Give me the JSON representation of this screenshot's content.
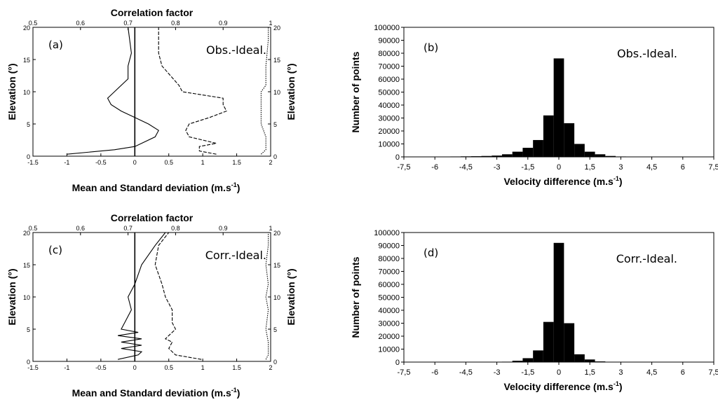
{
  "chart_data": [
    {
      "id": "a",
      "type": "line",
      "panel_label": "(a)",
      "annotation": "Obs.-Ideal.",
      "title": "Correlation factor",
      "xlabel": "Mean and Standard deviation (m.s",
      "xlabel_sup": "-1",
      "xlabel_end": ")",
      "ylabel_left": "Elevation (°)",
      "ylabel_right": "Elevation (°)",
      "xlim": [
        -1.5,
        2
      ],
      "xticks": [
        "-1.5",
        "-1",
        "-0.5",
        "0",
        "0.5",
        "1",
        "1.5",
        "2"
      ],
      "top_xlim": [
        0.5,
        1
      ],
      "top_xticks": [
        "0.5",
        "0.6",
        "0.7",
        "0.8",
        "0.9",
        "1"
      ],
      "ylim": [
        0,
        20
      ],
      "yticks": [
        "0",
        "5",
        "10",
        "15",
        "20"
      ],
      "series": [
        {
          "y": [
            0.3,
            1,
            1.5,
            2,
            3,
            4,
            5,
            6,
            7,
            8,
            9,
            10,
            12,
            14,
            16,
            20
          ],
          "x": [
            -1,
            -0.3,
            0,
            0.1,
            0.3,
            0.35,
            0.2,
            0,
            -0.2,
            -0.35,
            -0.4,
            -0.3,
            -0.1,
            -0.1,
            -0.05,
            -0.1
          ]
        },
        {
          "y": [
            0.3,
            0.8,
            1.5,
            2,
            3,
            4,
            5,
            6,
            7,
            8,
            9,
            10,
            11,
            14,
            16,
            20
          ],
          "x": [
            1.2,
            0.95,
            0.95,
            1.2,
            0.8,
            0.75,
            0.8,
            1.1,
            1.35,
            1.3,
            1.3,
            0.7,
            0.65,
            0.4,
            0.35,
            0.35
          ]
        },
        {
          "y": [
            0.3,
            1,
            2,
            3,
            4,
            5,
            6,
            7,
            8,
            9,
            10,
            11,
            14,
            18,
            20
          ],
          "x": [
            0.98,
            0.99,
            0.99,
            0.99,
            0.985,
            0.98,
            0.98,
            0.98,
            0.98,
            0.98,
            0.98,
            0.99,
            0.99,
            0.995,
            0.995
          ]
        }
      ]
    },
    {
      "id": "b",
      "type": "bar",
      "panel_label": "(b)",
      "annotation": "Obs.-Ideal.",
      "ylabel": "Number of points",
      "xlabel": "Velocity difference (m.s",
      "xlabel_sup": "-1",
      "xlabel_end": ")",
      "xlim": [
        -7.5,
        7.5
      ],
      "xticks": [
        "-7,5",
        "-6",
        "-4,5",
        "-3",
        "-1,5",
        "0",
        "1,5",
        "3",
        "4,5",
        "6",
        "7,5"
      ],
      "ylim": [
        0,
        100000
      ],
      "yticks": [
        "0",
        "10000",
        "20000",
        "30000",
        "40000",
        "50000",
        "60000",
        "70000",
        "80000",
        "90000",
        "100000"
      ],
      "bin_width": 0.5,
      "bin_centers": [
        -5.5,
        -5,
        -4.5,
        -4,
        -3.5,
        -3,
        -2.5,
        -2,
        -1.5,
        -1,
        -0.5,
        0,
        0.5,
        1,
        1.5,
        2,
        2.5,
        3
      ],
      "values": [
        200,
        300,
        400,
        500,
        700,
        1000,
        2000,
        4000,
        7000,
        13000,
        32000,
        76000,
        26000,
        10000,
        4000,
        2000,
        700,
        300
      ]
    },
    {
      "id": "c",
      "type": "line",
      "panel_label": "(c)",
      "annotation": "Corr.-Ideal.",
      "title": "Correlation factor",
      "xlabel": "Mean and Standard deviation (m.s",
      "xlabel_sup": "-1",
      "xlabel_end": ")",
      "ylabel_left": "Elevation (°)",
      "ylabel_right": "Elevation (°)",
      "xlim": [
        -1.5,
        2
      ],
      "xticks": [
        "-1.5",
        "-1",
        "-0.5",
        "0",
        "0.5",
        "1",
        "1.5",
        "2"
      ],
      "top_xlim": [
        0.5,
        1
      ],
      "top_xticks": [
        "0.5",
        "0.6",
        "0.7",
        "0.8",
        "0.9",
        "1"
      ],
      "ylim": [
        0,
        20
      ],
      "yticks": [
        "0",
        "5",
        "10",
        "15",
        "20"
      ],
      "series": [
        {
          "y": [
            0.3,
            1,
            1.5,
            2,
            2.5,
            3,
            3.5,
            4,
            4.5,
            5,
            6,
            8,
            10,
            12,
            15,
            18,
            20
          ],
          "x": [
            -0.25,
            0.05,
            0.1,
            -0.2,
            0.1,
            -0.2,
            0.1,
            -0.25,
            0.05,
            -0.2,
            -0.15,
            -0.05,
            -0.1,
            0,
            0.1,
            0.3,
            0.45
          ]
        },
        {
          "y": [
            0.3,
            1,
            2,
            3,
            3.5,
            4,
            5,
            6,
            8,
            10,
            12,
            15,
            18,
            20
          ],
          "x": [
            0.98,
            0.6,
            0.5,
            0.55,
            0.45,
            0.5,
            0.6,
            0.55,
            0.55,
            0.45,
            0.4,
            0.3,
            0.35,
            0.5
          ]
        },
        {
          "y": [
            0.3,
            1,
            3,
            5,
            8,
            10,
            12,
            15,
            18,
            20
          ],
          "x": [
            0.99,
            0.995,
            0.995,
            0.99,
            0.995,
            0.99,
            0.995,
            0.99,
            0.995,
            0.995
          ]
        }
      ]
    },
    {
      "id": "d",
      "type": "bar",
      "panel_label": "(d)",
      "annotation": "Corr.-Ideal.",
      "ylabel": "Number of points",
      "xlabel": "Velocity difference (m.s",
      "xlabel_sup": "-1",
      "xlabel_end": ")",
      "xlim": [
        -7.5,
        7.5
      ],
      "xticks": [
        "-7,5",
        "-6",
        "-4,5",
        "-3",
        "-1,5",
        "0",
        "1,5",
        "3",
        "4,5",
        "6",
        "7,5"
      ],
      "ylim": [
        0,
        100000
      ],
      "yticks": [
        "0",
        "10000",
        "20000",
        "30000",
        "40000",
        "50000",
        "60000",
        "70000",
        "80000",
        "90000",
        "100000"
      ],
      "bin_width": 0.5,
      "bin_centers": [
        -2.5,
        -2,
        -1.5,
        -1,
        -0.5,
        0,
        0.5,
        1,
        1.5,
        2
      ],
      "values": [
        300,
        1000,
        3000,
        9000,
        31000,
        92000,
        30000,
        6000,
        2000,
        500
      ]
    }
  ]
}
